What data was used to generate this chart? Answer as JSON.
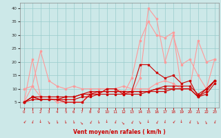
{
  "x": [
    0,
    1,
    2,
    3,
    4,
    5,
    6,
    7,
    8,
    9,
    10,
    11,
    12,
    13,
    14,
    15,
    16,
    17,
    18,
    19,
    20,
    21,
    22,
    23
  ],
  "line1": [
    5,
    21,
    7,
    7,
    7,
    5,
    5,
    5,
    8,
    8,
    10,
    10,
    9,
    8,
    14,
    40,
    36,
    20,
    30,
    19,
    21,
    15,
    10,
    21
  ],
  "line2": [
    5,
    11,
    7,
    7,
    5,
    5,
    5,
    5,
    9,
    8,
    10,
    10,
    8,
    14,
    28,
    35,
    30,
    29,
    31,
    10,
    10,
    28,
    20,
    21
  ],
  "line3": [
    10,
    11,
    24,
    13,
    11,
    10,
    11,
    10,
    10,
    10,
    10,
    10,
    11,
    10,
    10,
    10,
    12,
    13,
    12,
    10,
    10,
    7,
    10,
    13
  ],
  "line4": [
    5,
    7,
    7,
    7,
    7,
    7,
    7,
    8,
    9,
    9,
    9,
    9,
    9,
    9,
    9,
    9,
    10,
    11,
    11,
    11,
    11,
    8,
    10,
    13
  ],
  "line5": [
    5,
    7,
    6,
    6,
    6,
    7,
    7,
    8,
    8,
    9,
    9,
    9,
    9,
    9,
    9,
    9,
    10,
    10,
    10,
    10,
    10,
    7,
    9,
    13
  ],
  "line6": [
    5,
    6,
    6,
    6,
    6,
    6,
    6,
    7,
    7,
    8,
    8,
    8,
    8,
    8,
    8,
    9,
    9,
    9,
    10,
    10,
    10,
    7,
    8,
    12
  ],
  "line7": [
    5,
    7,
    6,
    6,
    6,
    5,
    5,
    5,
    8,
    8,
    10,
    10,
    8,
    9,
    19,
    19,
    16,
    14,
    15,
    12,
    13,
    7,
    10,
    13
  ],
  "light_pink": "#ff9999",
  "dark_red": "#cc0000",
  "bg_color": "#cce8e8",
  "grid_color": "#99cccc",
  "label_color": "#cc0000",
  "xlabel": "Vent moyen/en rafales ( km/h )",
  "xlim": [
    -0.5,
    23.5
  ],
  "ylim": [
    3,
    42
  ],
  "yticks": [
    5,
    10,
    15,
    20,
    25,
    30,
    35,
    40
  ],
  "xticks": [
    0,
    1,
    2,
    3,
    4,
    5,
    6,
    7,
    8,
    9,
    10,
    11,
    12,
    13,
    14,
    15,
    16,
    17,
    18,
    19,
    20,
    21,
    22,
    23
  ]
}
